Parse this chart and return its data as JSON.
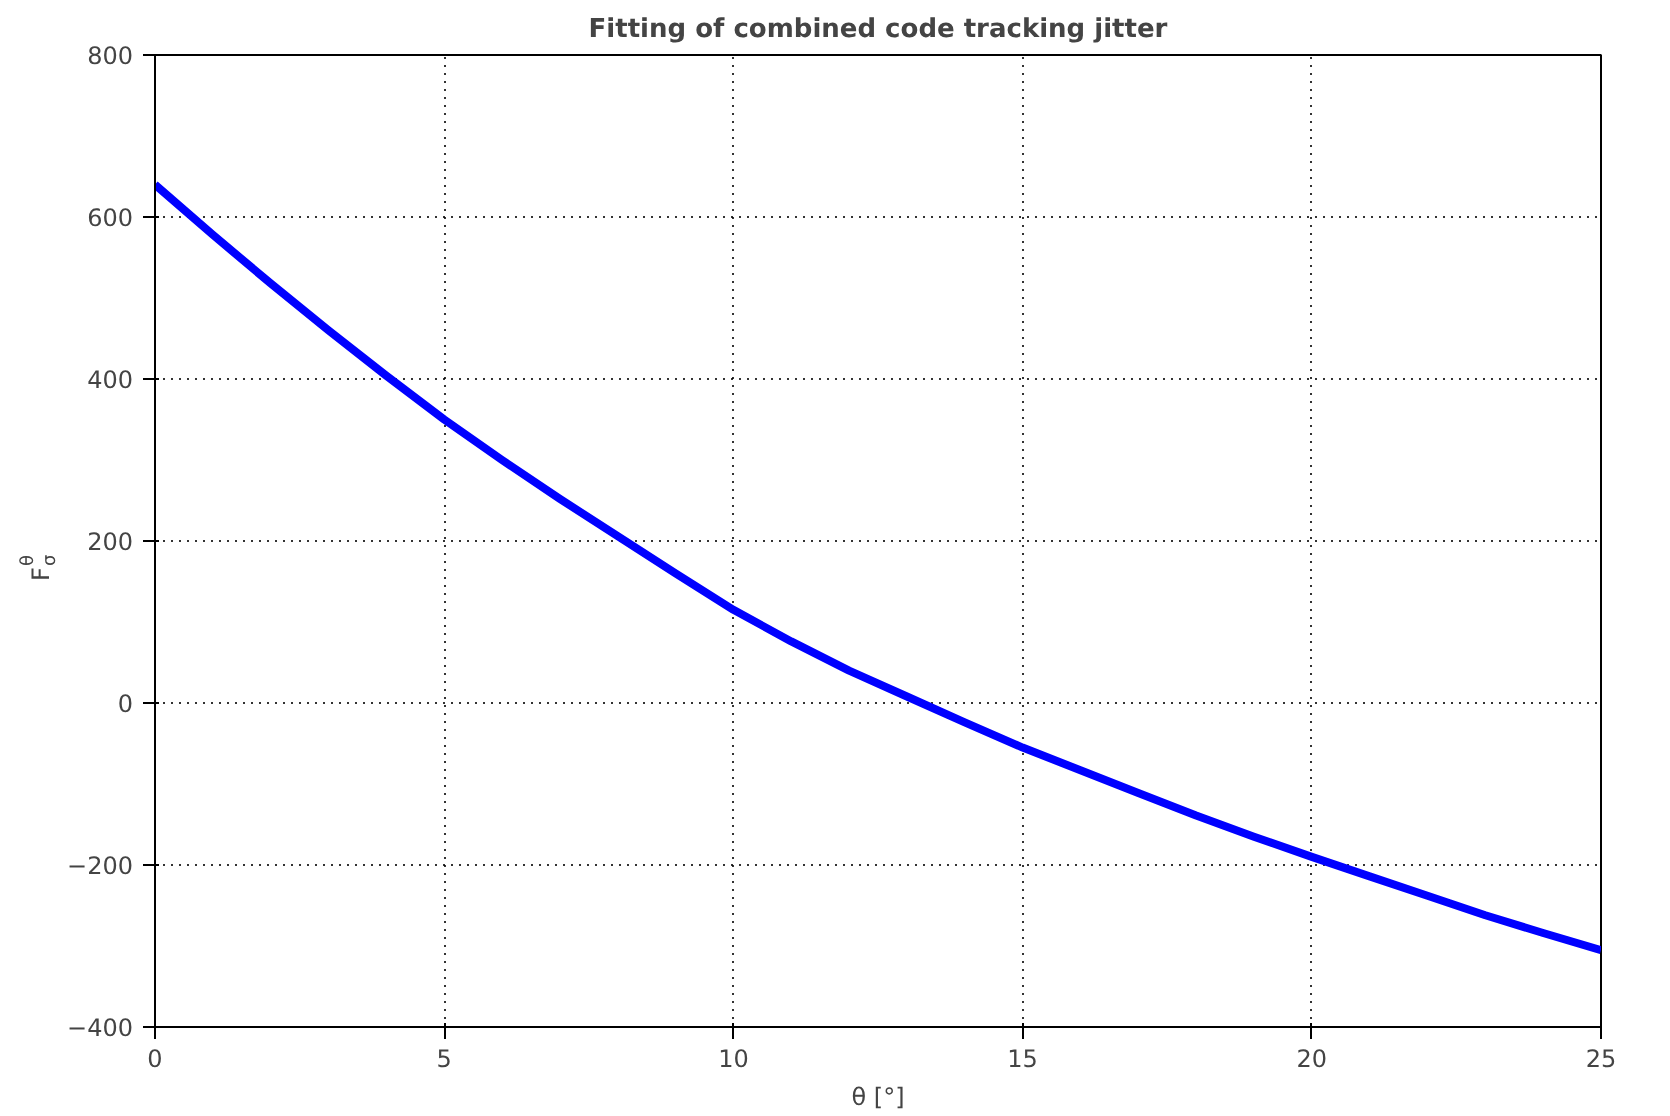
{
  "chart_data": {
    "type": "line",
    "title": "Fitting of combined code tracking jitter",
    "xlabel": "θ [°]",
    "ylabel": "F$^{θ}$$_{σ}$",
    "x": [
      0,
      1,
      2,
      3,
      4,
      5,
      6,
      7,
      8,
      9,
      10,
      11,
      12,
      13,
      14,
      15,
      16,
      17,
      18,
      19,
      20,
      21,
      22,
      23,
      24,
      25
    ],
    "series": [
      {
        "color": "#0000ff",
        "values": [
          640,
          578,
          518,
          460,
          404,
          350,
          300,
          252,
          206,
          160,
          115,
          76,
          40,
          8,
          -24,
          -55,
          -83,
          -111,
          -139,
          -165,
          -190,
          -214,
          -238,
          -262,
          -284,
          -305
        ]
      }
    ],
    "xlim": [
      0,
      25
    ],
    "xticks": [
      0,
      5,
      10,
      15,
      20,
      25
    ],
    "ylim": [
      -400,
      800
    ],
    "yticks": [
      -400,
      -200,
      0,
      200,
      400,
      600,
      800
    ],
    "grid": true,
    "line_style": "solid",
    "marker": "none"
  }
}
